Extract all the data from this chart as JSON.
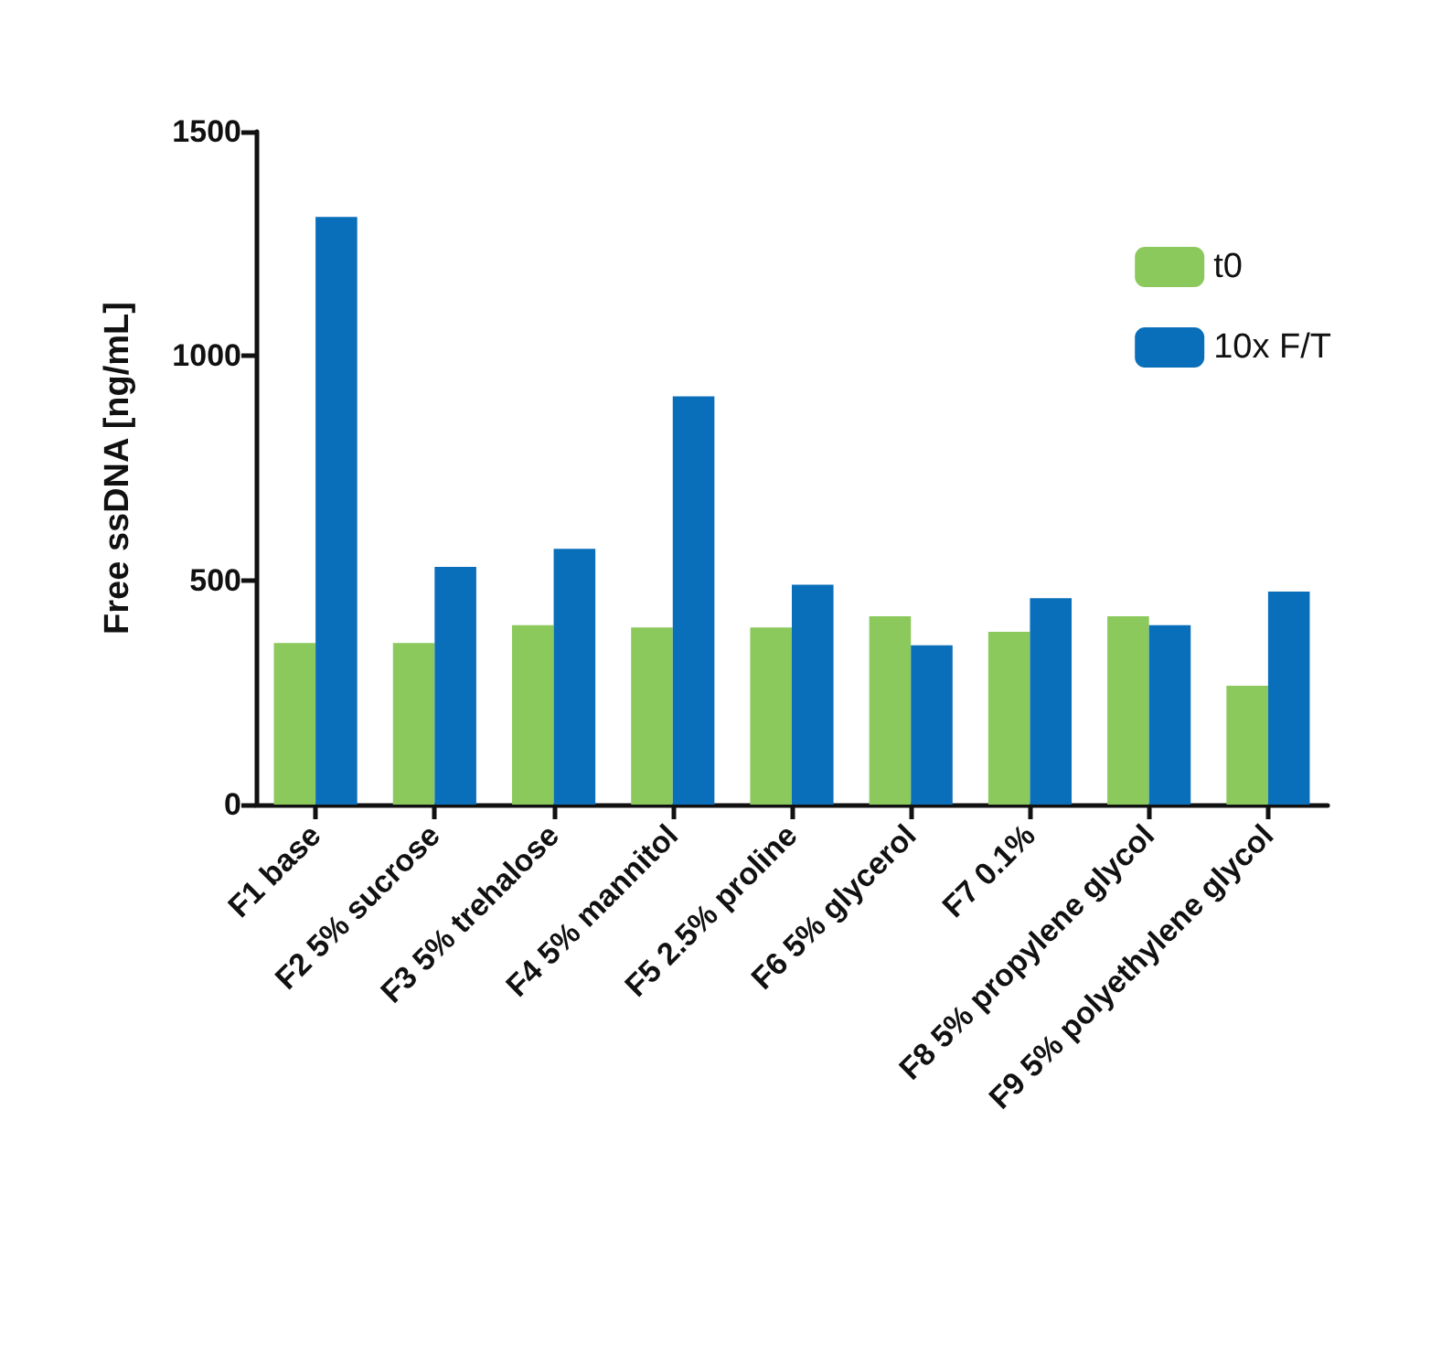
{
  "chart_data": {
    "type": "bar",
    "ylabel": "Free ssDNA [ng/mL]",
    "categories": [
      "F1 base",
      "F2 5% sucrose",
      "F3 5% trehalose",
      "F4 5% mannitol",
      "F5 2.5% proline",
      "F6 5% glycerol",
      "F7 0.1%",
      "F8 5% propylene glycol",
      "F9 5% polyethylene glycol"
    ],
    "series": [
      {
        "name": "t0",
        "color": "#8cc95c",
        "values": [
          360,
          360,
          400,
          395,
          395,
          420,
          385,
          420,
          265
        ]
      },
      {
        "name": "10x F/T",
        "color": "#0a6fba",
        "values": [
          1310,
          530,
          570,
          910,
          490,
          355,
          460,
          400,
          475
        ]
      }
    ],
    "ylim": [
      0,
      1500
    ],
    "yticks": [
      0,
      500,
      1000,
      1500
    ],
    "grid": false,
    "legend": "top right"
  }
}
